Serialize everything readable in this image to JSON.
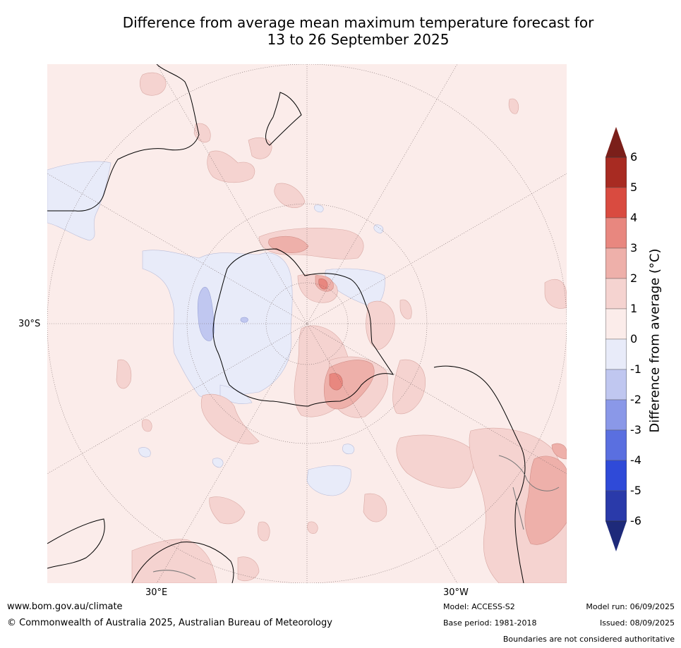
{
  "title_line1": "Difference from average mean maximum temperature forecast for",
  "title_line2": "13 to 26 September 2025",
  "map": {
    "lat_label": "30°S",
    "lon_label_east": "30°E",
    "lon_label_west": "30°W",
    "background_color": "#fbecea"
  },
  "colorbar": {
    "title": "Difference from average ($^\\circ$C)",
    "title_display": "Difference from average (°C)",
    "ticks": [
      "6",
      "5",
      "4",
      "3",
      "2",
      "1",
      "0",
      "-1",
      "-2",
      "-3",
      "-4",
      "-5",
      "-6"
    ],
    "colors": [
      "#7b1f1a",
      "#a82b22",
      "#d94b40",
      "#e8877f",
      "#eeb0aa",
      "#f5d3d0",
      "#fbecea",
      "#e8ebf9",
      "#c0c7f0",
      "#8a98e8",
      "#5a6fe0",
      "#2f4ad8",
      "#2a3aaa",
      "#1e2a7a"
    ]
  },
  "footer": {
    "url": "www.bom.gov.au/climate",
    "copyright": "© Commonwealth of Australia 2025, Australian Bureau of Meteorology",
    "model": "Model: ACCESS-S2",
    "base_period": "Base period: 1981-2018",
    "model_run": "Model run: 06/09/2025",
    "issued": "Issued: 08/09/2025",
    "disclaimer": "Boundaries are not considered authoritative"
  }
}
